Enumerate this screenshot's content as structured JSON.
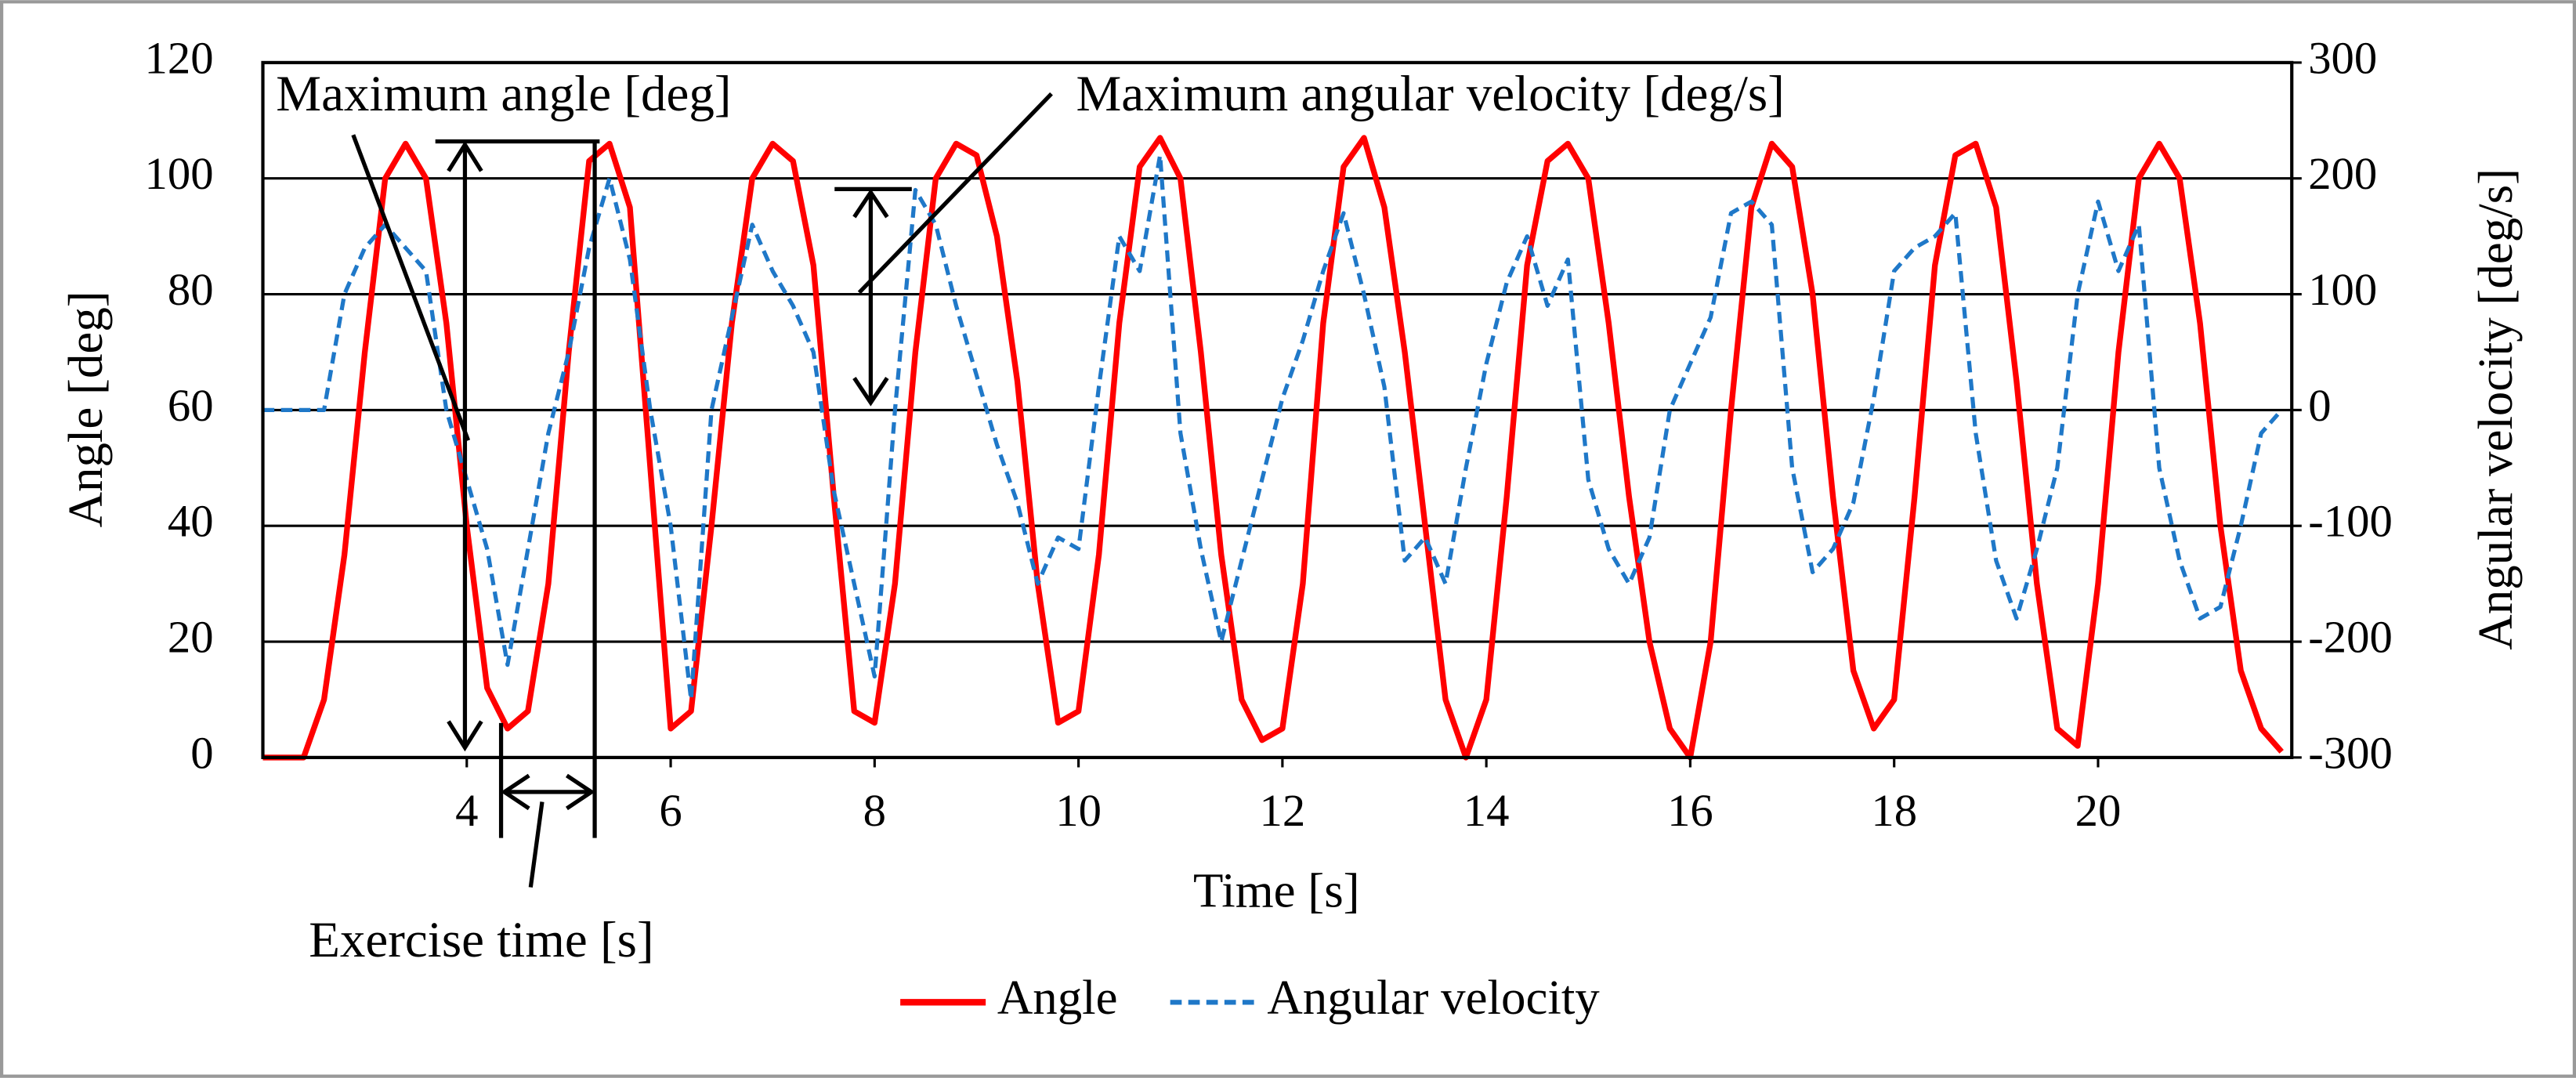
{
  "chart_data": {
    "type": "line",
    "xlabel": "Time [s]",
    "ylabel": "Angle [deg]",
    "y2label": "Angular velocity [deg/s]",
    "annotations": [
      "Maximum angle [deg]",
      "Maximum angular velocity [deg/s]",
      "Exercise time [s]"
    ],
    "annotation_colors": [
      "#ff0000",
      "#1f78c8",
      "#ff0000"
    ],
    "xlim": [
      2,
      21.9
    ],
    "xticks": [
      4,
      6,
      8,
      10,
      12,
      14,
      16,
      18,
      20
    ],
    "ylim": [
      0,
      120
    ],
    "yticks": [
      0,
      20,
      40,
      60,
      80,
      100,
      120
    ],
    "y2lim": [
      -300,
      300
    ],
    "y2ticks": [
      -300,
      -200,
      -100,
      0,
      100,
      200,
      300
    ],
    "grid": true,
    "legend": "bottom",
    "x": [
      2.0,
      2.2,
      2.4,
      2.6,
      2.8,
      3.0,
      3.2,
      3.4,
      3.6,
      3.8,
      4.0,
      4.2,
      4.4,
      4.6,
      4.8,
      5.0,
      5.2,
      5.4,
      5.6,
      5.8,
      6.0,
      6.2,
      6.4,
      6.6,
      6.8,
      7.0,
      7.2,
      7.4,
      7.6,
      7.8,
      8.0,
      8.2,
      8.4,
      8.6,
      8.8,
      9.0,
      9.2,
      9.4,
      9.6,
      9.8,
      10.0,
      10.2,
      10.4,
      10.6,
      10.8,
      11.0,
      11.2,
      11.4,
      11.6,
      11.8,
      12.0,
      12.2,
      12.4,
      12.6,
      12.8,
      13.0,
      13.2,
      13.4,
      13.6,
      13.8,
      14.0,
      14.2,
      14.4,
      14.6,
      14.8,
      15.0,
      15.2,
      15.4,
      15.6,
      15.8,
      16.0,
      16.2,
      16.4,
      16.6,
      16.8,
      17.0,
      17.2,
      17.4,
      17.6,
      17.8,
      18.0,
      18.2,
      18.4,
      18.6,
      18.8,
      19.0,
      19.2,
      19.4,
      19.6,
      19.8,
      20.0,
      20.2,
      20.4,
      20.6,
      20.8,
      21.0,
      21.2,
      21.4,
      21.6,
      21.8
    ],
    "series": [
      {
        "name": "Angle",
        "color": "#ff0000",
        "dash": false,
        "values": [
          0,
          0,
          0,
          10,
          35,
          70,
          100,
          106,
          100,
          75,
          40,
          12,
          5,
          8,
          30,
          70,
          103,
          106,
          95,
          50,
          5,
          8,
          40,
          75,
          100,
          106,
          103,
          85,
          45,
          8,
          6,
          30,
          70,
          100,
          106,
          104,
          90,
          65,
          30,
          6,
          8,
          35,
          75,
          102,
          107,
          100,
          70,
          35,
          10,
          3,
          5,
          30,
          75,
          102,
          107,
          95,
          70,
          40,
          10,
          0,
          10,
          45,
          85,
          103,
          106,
          100,
          75,
          45,
          20,
          5,
          0,
          20,
          60,
          95,
          106,
          102,
          80,
          45,
          15,
          5,
          10,
          45,
          85,
          104,
          106,
          95,
          65,
          30,
          5,
          2,
          30,
          70,
          100,
          106,
          100,
          75,
          40,
          15,
          5,
          1
        ]
      },
      {
        "name": "Angular velocity",
        "color": "#1f78c8",
        "dash": true,
        "axis": "y2",
        "values": [
          0,
          0,
          0,
          0,
          100,
          140,
          160,
          140,
          120,
          0,
          -60,
          -120,
          -220,
          -120,
          -20,
          50,
          140,
          200,
          130,
          0,
          -100,
          -250,
          0,
          80,
          160,
          120,
          90,
          50,
          -70,
          -150,
          -230,
          0,
          190,
          160,
          90,
          30,
          -30,
          -80,
          -150,
          -110,
          -120,
          20,
          150,
          120,
          220,
          -20,
          -120,
          -200,
          -130,
          -60,
          10,
          60,
          120,
          170,
          100,
          20,
          -130,
          -110,
          -150,
          -50,
          40,
          110,
          150,
          90,
          130,
          -60,
          -120,
          -150,
          -110,
          0,
          40,
          80,
          170,
          180,
          160,
          -50,
          -140,
          -120,
          -80,
          10,
          120,
          140,
          150,
          170,
          -20,
          -130,
          -180,
          -120,
          -50,
          100,
          180,
          120,
          160,
          -50,
          -130,
          -180,
          -170,
          -100,
          -20,
          0
        ]
      }
    ]
  }
}
